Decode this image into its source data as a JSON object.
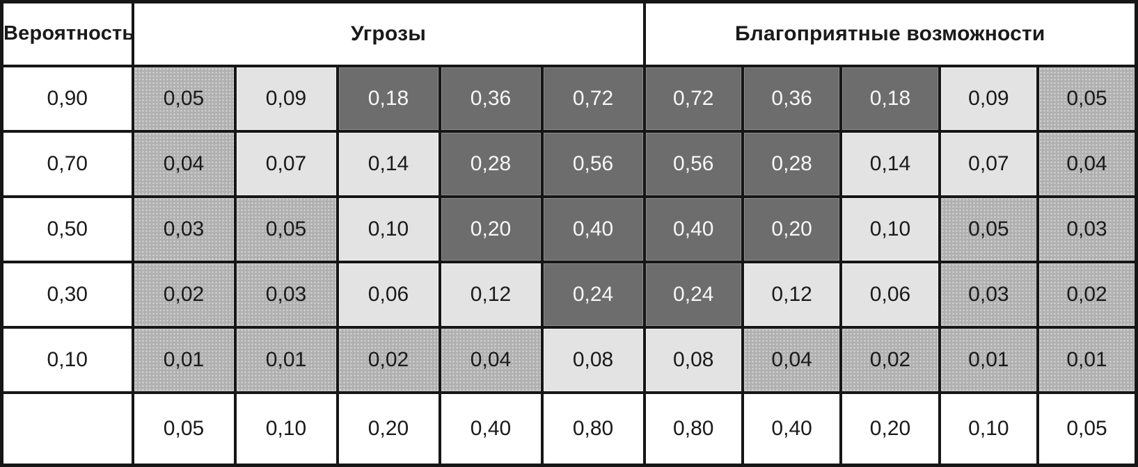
{
  "table": {
    "probability_header": "Вероятность",
    "threats_header": "Угрозы",
    "opportunities_header": "Благоприятные возможности",
    "rows": [
      {
        "probability": "0,90",
        "cells": [
          {
            "value": "0,05",
            "tone": "mid"
          },
          {
            "value": "0,09",
            "tone": "light"
          },
          {
            "value": "0,18",
            "tone": "dark"
          },
          {
            "value": "0,36",
            "tone": "dark"
          },
          {
            "value": "0,72",
            "tone": "dark"
          },
          {
            "value": "0,72",
            "tone": "dark"
          },
          {
            "value": "0,36",
            "tone": "dark"
          },
          {
            "value": "0,18",
            "tone": "dark"
          },
          {
            "value": "0,09",
            "tone": "light"
          },
          {
            "value": "0,05",
            "tone": "mid"
          }
        ]
      },
      {
        "probability": "0,70",
        "cells": [
          {
            "value": "0,04",
            "tone": "mid"
          },
          {
            "value": "0,07",
            "tone": "light"
          },
          {
            "value": "0,14",
            "tone": "light"
          },
          {
            "value": "0,28",
            "tone": "dark"
          },
          {
            "value": "0,56",
            "tone": "dark"
          },
          {
            "value": "0,56",
            "tone": "dark"
          },
          {
            "value": "0,28",
            "tone": "dark"
          },
          {
            "value": "0,14",
            "tone": "light"
          },
          {
            "value": "0,07",
            "tone": "light"
          },
          {
            "value": "0,04",
            "tone": "mid"
          }
        ]
      },
      {
        "probability": "0,50",
        "cells": [
          {
            "value": "0,03",
            "tone": "mid"
          },
          {
            "value": "0,05",
            "tone": "mid"
          },
          {
            "value": "0,10",
            "tone": "light"
          },
          {
            "value": "0,20",
            "tone": "dark"
          },
          {
            "value": "0,40",
            "tone": "dark"
          },
          {
            "value": "0,40",
            "tone": "dark"
          },
          {
            "value": "0,20",
            "tone": "dark"
          },
          {
            "value": "0,10",
            "tone": "light"
          },
          {
            "value": "0,05",
            "tone": "mid"
          },
          {
            "value": "0,03",
            "tone": "mid"
          }
        ]
      },
      {
        "probability": "0,30",
        "cells": [
          {
            "value": "0,02",
            "tone": "mid"
          },
          {
            "value": "0,03",
            "tone": "mid"
          },
          {
            "value": "0,06",
            "tone": "light"
          },
          {
            "value": "0,12",
            "tone": "light"
          },
          {
            "value": "0,24",
            "tone": "dark"
          },
          {
            "value": "0,24",
            "tone": "dark"
          },
          {
            "value": "0,12",
            "tone": "light"
          },
          {
            "value": "0,06",
            "tone": "light"
          },
          {
            "value": "0,03",
            "tone": "mid"
          },
          {
            "value": "0,02",
            "tone": "mid"
          }
        ]
      },
      {
        "probability": "0,10",
        "cells": [
          {
            "value": "0,01",
            "tone": "mid"
          },
          {
            "value": "0,01",
            "tone": "mid"
          },
          {
            "value": "0,02",
            "tone": "mid"
          },
          {
            "value": "0,04",
            "tone": "mid"
          },
          {
            "value": "0,08",
            "tone": "light"
          },
          {
            "value": "0,08",
            "tone": "light"
          },
          {
            "value": "0,04",
            "tone": "mid"
          },
          {
            "value": "0,02",
            "tone": "mid"
          },
          {
            "value": "0,01",
            "tone": "mid"
          },
          {
            "value": "0,01",
            "tone": "mid"
          }
        ]
      },
      {
        "probability": "",
        "cells": [
          {
            "value": "0,05",
            "tone": "white"
          },
          {
            "value": "0,10",
            "tone": "white"
          },
          {
            "value": "0,20",
            "tone": "white"
          },
          {
            "value": "0,40",
            "tone": "white"
          },
          {
            "value": "0,80",
            "tone": "white"
          },
          {
            "value": "0,80",
            "tone": "white"
          },
          {
            "value": "0,40",
            "tone": "white"
          },
          {
            "value": "0,20",
            "tone": "white"
          },
          {
            "value": "0,10",
            "tone": "white"
          },
          {
            "value": "0,05",
            "tone": "white"
          }
        ]
      }
    ]
  },
  "colors": {
    "dark_cell": "#6d6d6d",
    "medium_cell": "#b0b0b0",
    "light_cell": "#e3e3e3",
    "border": "#161616",
    "text": "#1a1a1a",
    "dark_cell_text": "#f7f7f7",
    "background": "#ffffff"
  }
}
